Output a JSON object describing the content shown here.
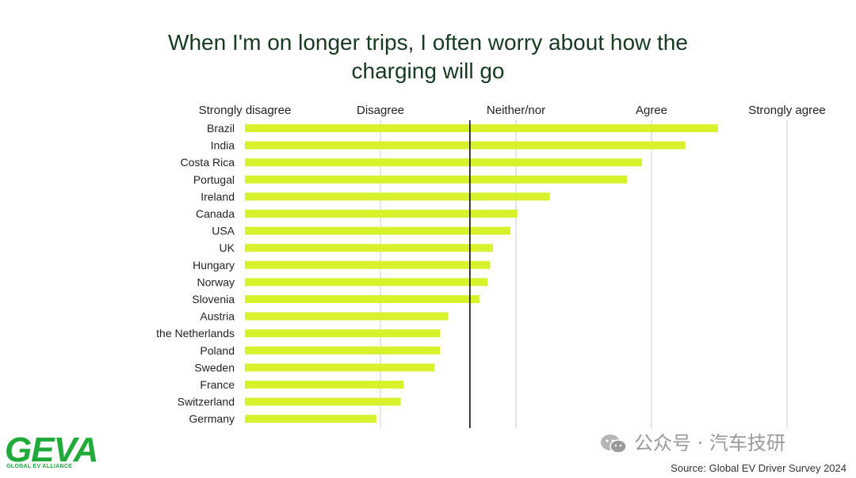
{
  "chart_data": {
    "type": "bar",
    "orientation": "horizontal",
    "title_lines": [
      "When I'm on longer trips, I often worry about how the",
      "charging will go"
    ],
    "scale_labels": [
      "Strongly disagree",
      "Disagree",
      "Neither/nor",
      "Agree",
      "Strongly agree"
    ],
    "scale_position": "top",
    "xlim": [
      1,
      5
    ],
    "reference_line": 2.66,
    "grid": true,
    "bar_color": "#d7f22c",
    "categories": [
      "Brazil",
      "India",
      "Costa Rica",
      "Portugal",
      "Ireland",
      "Canada",
      "USA",
      "UK",
      "Hungary",
      "Norway",
      "Slovenia",
      "Austria",
      "the Netherlands",
      "Poland",
      "Sweden",
      "France",
      "Switzerland",
      "Germany"
    ],
    "values": [
      4.49,
      4.25,
      3.93,
      3.82,
      3.25,
      3.01,
      2.96,
      2.83,
      2.81,
      2.79,
      2.73,
      2.5,
      2.44,
      2.44,
      2.4,
      2.17,
      2.15,
      1.97
    ]
  },
  "logo": {
    "name": "GEVA",
    "sub": "GLOBAL EV ALLIANCE"
  },
  "watermark": {
    "text": "公众号 · 汽车技研",
    "icon": "wechat-icon"
  },
  "source": "Source: Global EV Driver Survey 2024",
  "colors": {
    "title": "#163a1f",
    "grid": "#cccccc",
    "reference": "#111111",
    "logo": "#1faa3a"
  }
}
